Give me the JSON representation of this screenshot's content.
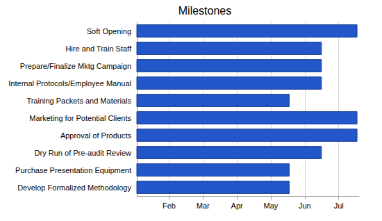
{
  "chart_data": {
    "type": "bar",
    "title": "Milestones",
    "orientation": "horizontal",
    "categories": [
      "Soft Opening",
      "Hire and Train Staff",
      "Prepare/Finalize Mktg Campaign",
      "Internal Protocols/Employee Manual",
      "Training Packets and Materials",
      "Marketing for Potential Clients",
      "Approval of Products",
      "Dry Run of Pre-audit Review",
      "Purchase Presentation Equipment",
      "Develop Formalized Methodology"
    ],
    "values": [
      7.05,
      6,
      6,
      6,
      5.05,
      7.05,
      7.05,
      6,
      5.05,
      5.05
    ],
    "color": "#2356c8",
    "xlim": [
      0.55,
      7.1
    ],
    "xticks": [
      {
        "value": 1.5,
        "label": "Feb"
      },
      {
        "value": 2.5,
        "label": "Mar"
      },
      {
        "value": 3.5,
        "label": "Apr"
      },
      {
        "value": 4.5,
        "label": "May"
      },
      {
        "value": 5.5,
        "label": "Jun"
      },
      {
        "value": 6.5,
        "label": "Jul"
      }
    ],
    "grid": true
  }
}
